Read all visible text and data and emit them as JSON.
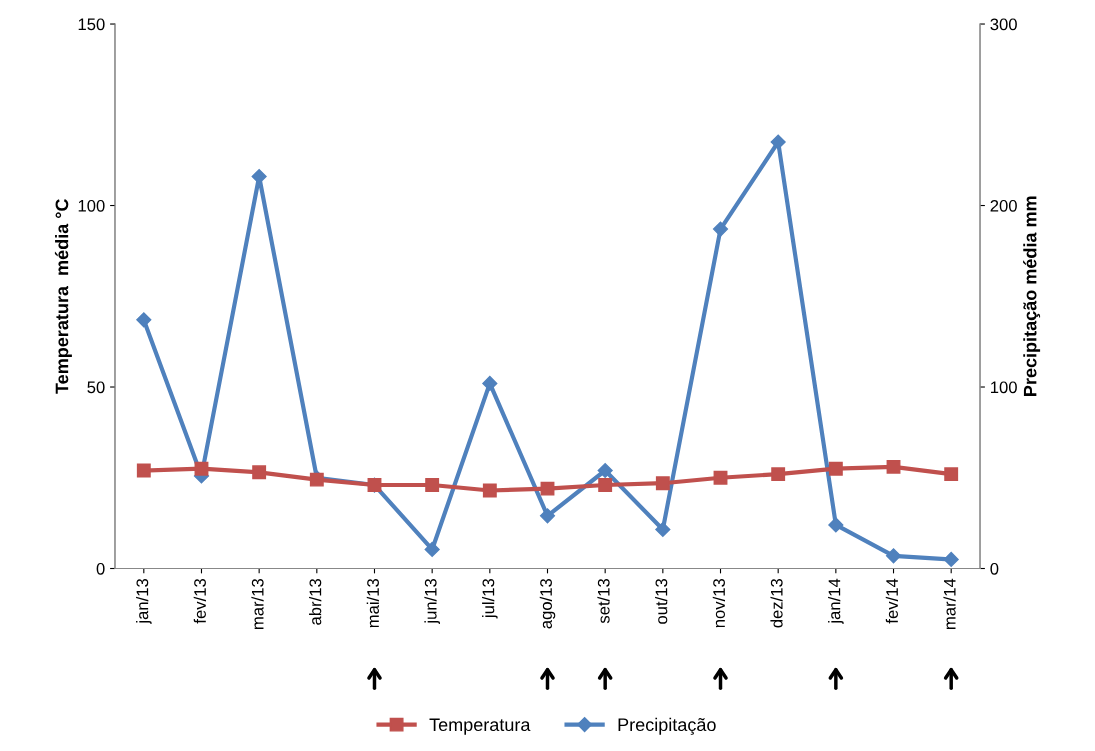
{
  "chart_data": {
    "type": "line",
    "categories": [
      "jan/13",
      "fev/13",
      "mar/13",
      "abr/13",
      "mai/13",
      "jun/13",
      "jul/13",
      "ago/13",
      "set/13",
      "out/13",
      "nov/13",
      "dez/13",
      "jan/14",
      "fev/14",
      "mar/14"
    ],
    "series": [
      {
        "name": "Temperatura",
        "color": "#c0504d",
        "marker": "square",
        "values": [
          27,
          27.5,
          26.5,
          24.5,
          23,
          23,
          21.5,
          22,
          23,
          23.5,
          25,
          26,
          27.5,
          28,
          26
        ]
      },
      {
        "name": "Precipitação",
        "color": "#4f81bd",
        "marker": "diamond",
        "axis": "y2",
        "values": [
          137,
          51,
          216,
          50,
          46,
          10.5,
          102,
          29,
          54,
          21.5,
          187,
          235,
          24,
          7,
          5
        ]
      }
    ],
    "ylabel": "Temperatura  média °C",
    "y2label": "Precipitação média mm",
    "ylim": [
      0,
      150
    ],
    "yticks": [
      0,
      50,
      100,
      150
    ],
    "y2lim": [
      0,
      300
    ],
    "y2ticks": [
      0,
      100,
      200,
      300
    ],
    "legend": "bottom",
    "grid": false
  }
}
